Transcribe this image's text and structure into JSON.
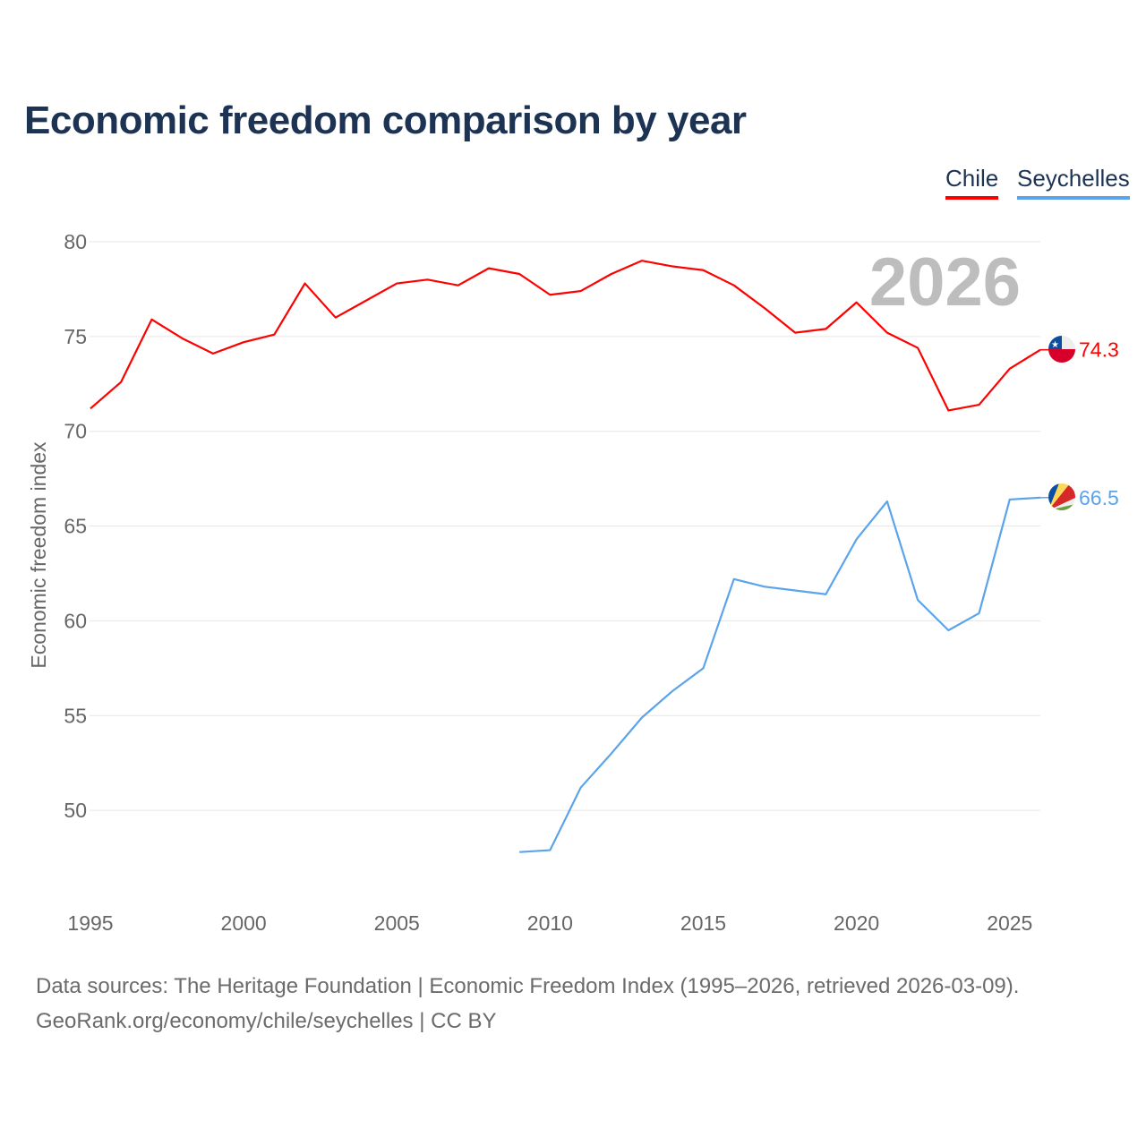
{
  "title": "Economic freedom comparison by year",
  "legend": [
    {
      "label": "Chile",
      "color": "#ff0000"
    },
    {
      "label": "Seychelles",
      "color": "#5ba3ea"
    }
  ],
  "chart_data": {
    "type": "line",
    "title": "Economic freedom comparison by year",
    "xlabel": "",
    "ylabel": "Economic freedom index",
    "xlim": [
      1995,
      2026
    ],
    "ylim": [
      45,
      81
    ],
    "x_ticks": [
      1995,
      2000,
      2005,
      2010,
      2015,
      2020,
      2025
    ],
    "y_ticks": [
      50,
      55,
      60,
      65,
      70,
      75,
      80
    ],
    "grid": true,
    "legend_position": "top-right",
    "year_annotation": "2026",
    "series": [
      {
        "name": "Chile",
        "color": "#ff0000",
        "end_label": "74.3",
        "x": [
          1995,
          1996,
          1997,
          1998,
          1999,
          2000,
          2001,
          2002,
          2003,
          2004,
          2005,
          2006,
          2007,
          2008,
          2009,
          2010,
          2011,
          2012,
          2013,
          2014,
          2015,
          2016,
          2017,
          2018,
          2019,
          2020,
          2021,
          2022,
          2023,
          2024,
          2025,
          2026
        ],
        "y": [
          71.2,
          72.6,
          75.9,
          74.9,
          74.1,
          74.7,
          75.1,
          77.8,
          76.0,
          76.9,
          77.8,
          78.0,
          77.7,
          78.6,
          78.3,
          77.2,
          77.4,
          78.3,
          79.0,
          78.7,
          78.5,
          77.7,
          76.5,
          75.2,
          75.4,
          76.8,
          75.2,
          74.4,
          71.1,
          71.4,
          73.3,
          74.3
        ]
      },
      {
        "name": "Seychelles",
        "color": "#5ba3ea",
        "end_label": "66.5",
        "x": [
          2009,
          2010,
          2011,
          2012,
          2013,
          2014,
          2015,
          2016,
          2017,
          2018,
          2019,
          2020,
          2021,
          2022,
          2023,
          2024,
          2025,
          2026
        ],
        "y": [
          47.8,
          47.9,
          51.2,
          53.0,
          54.9,
          56.3,
          57.5,
          62.2,
          61.8,
          61.6,
          61.4,
          64.3,
          66.3,
          61.1,
          59.5,
          60.4,
          66.4,
          66.5
        ]
      }
    ]
  },
  "footer": {
    "line1": "Data sources: The Heritage Foundation | Economic Freedom Index (1995–2026, retrieved 2026-03-09).",
    "line2": "GeoRank.org/economy/chile/seychelles | CC BY"
  }
}
